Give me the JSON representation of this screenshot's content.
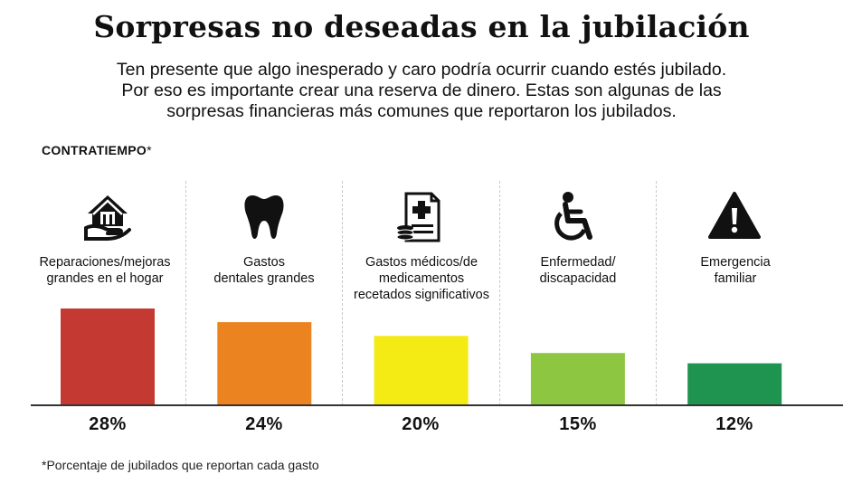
{
  "title": "Sorpresas no deseadas en la jubilación",
  "subtitle_lines": [
    "Ten presente que algo inesperado y caro podría ocurrir cuando estés jubilado.",
    "Por eso es importante crear una reserva de dinero. Estas son algunas de las",
    "sorpresas financieras más comunes que reportaron los jubilados."
  ],
  "section_label": "CONTRATIEMPO",
  "section_label_mark": "*",
  "footnote": "*Porcentaje de jubilados que reportan cada gasto",
  "chart_data": {
    "type": "bar",
    "title": "Sorpresas no deseadas en la jubilación",
    "xlabel": "CONTRATIEMPO*",
    "ylabel": "",
    "unit": "%",
    "ylim": [
      0,
      30
    ],
    "categories": [
      {
        "lines": [
          "Reparaciones/mejoras",
          "grandes en el hogar"
        ],
        "value": 28,
        "value_label": "28%",
        "color": "#c43a32",
        "icon": "home-repair-icon"
      },
      {
        "lines": [
          "Gastos",
          "dentales grandes"
        ],
        "value": 24,
        "value_label": "24%",
        "color": "#ec8321",
        "icon": "tooth-icon"
      },
      {
        "lines": [
          "Gastos médicos/de",
          "medicamentos",
          "recetados significativos"
        ],
        "value": 20,
        "value_label": "20%",
        "color": "#f4ea14",
        "icon": "medical-bill-icon"
      },
      {
        "lines": [
          "Enfermedad/",
          "discapacidad"
        ],
        "value": 15,
        "value_label": "15%",
        "color": "#8dc641",
        "icon": "wheelchair-icon"
      },
      {
        "lines": [
          "Emergencia",
          "familiar"
        ],
        "value": 12,
        "value_label": "12%",
        "color": "#1f9350",
        "icon": "warning-icon"
      }
    ]
  }
}
